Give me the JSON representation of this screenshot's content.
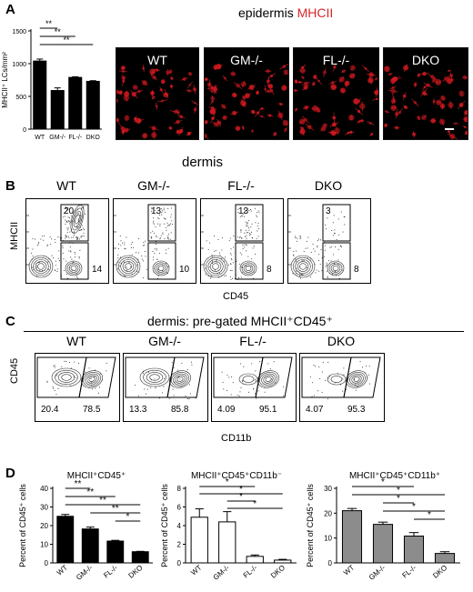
{
  "panelA": {
    "letter": "A",
    "title_main": "epidermis ",
    "title_accent": "MHCII",
    "accent_color": "#d8262a",
    "ylabel": "MHCII⁺ LCs/mm²",
    "yticks": [
      "0",
      "500",
      "1000",
      "1500"
    ],
    "sig": [
      "**",
      "**",
      "**"
    ],
    "micrographs": [
      "WT",
      "GM-/-",
      "FL-/-",
      "DKO"
    ]
  },
  "panelB": {
    "letter": "B",
    "title": "dermis",
    "plots": [
      {
        "name": "WT",
        "gate_high": "20",
        "gate_low": "14"
      },
      {
        "name": "GM-/-",
        "gate_high": "13",
        "gate_low": "10"
      },
      {
        "name": "FL-/-",
        "gate_high": "13",
        "gate_low": "8"
      },
      {
        "name": "DKO",
        "gate_high": "3",
        "gate_low": "8"
      }
    ],
    "ylabel": "MHCII",
    "xlabel": "CD45"
  },
  "panelC": {
    "letter": "C",
    "title": "dermis: pre-gated MHCII⁺CD45⁺",
    "plots": [
      {
        "name": "WT",
        "left": "20.4",
        "right": "78.5"
      },
      {
        "name": "GM-/-",
        "left": "13.3",
        "right": "85.8"
      },
      {
        "name": "FL-/-",
        "left": "4.09",
        "right": "95.1"
      },
      {
        "name": "DKO",
        "left": "4.07",
        "right": "95.3"
      }
    ],
    "ylabel": "CD45",
    "xlabel": "CD11b"
  },
  "panelD": {
    "letter": "D"
  },
  "chart_data": [
    {
      "type": "bar",
      "panel": "A",
      "categories": [
        "WT",
        "GM-/-",
        "FL-/-",
        "DKO"
      ],
      "values": [
        1040,
        590,
        790,
        730
      ],
      "errors": [
        30,
        40,
        10,
        10
      ],
      "ylabel": "MHCII⁺ LCs/mm²",
      "ylim": [
        0,
        1500
      ],
      "yticks": [
        0,
        500,
        1000,
        1500
      ],
      "bar_color": "#000000",
      "significance": [
        {
          "from": 0,
          "to": 1,
          "label": "**"
        },
        {
          "from": 0,
          "to": 2,
          "label": "**"
        },
        {
          "from": 0,
          "to": 3,
          "label": "**"
        }
      ]
    },
    {
      "type": "bar",
      "panel": "D1",
      "title": "MHCII⁺CD45⁺",
      "categories": [
        "WT",
        "GM-/-",
        "FL-/-",
        "DKO"
      ],
      "values": [
        25,
        18.2,
        11.7,
        6
      ],
      "errors": [
        1,
        1,
        0.4,
        0.2
      ],
      "ylabel": "Percent of CD45⁺ cells",
      "ylim": [
        0,
        40
      ],
      "yticks": [
        0,
        10,
        20,
        30,
        40
      ],
      "bar_color": "#000000",
      "significance": [
        {
          "from": 0,
          "to": 1,
          "label": "**"
        },
        {
          "from": 0,
          "to": 2,
          "label": "**"
        },
        {
          "from": 0,
          "to": 3,
          "label": "**"
        },
        {
          "from": 1,
          "to": 3,
          "label": "**"
        },
        {
          "from": 2,
          "to": 3,
          "label": "*"
        }
      ]
    },
    {
      "type": "bar",
      "panel": "D2",
      "title": "MHCII⁺CD45⁺CD11b⁻",
      "categories": [
        "WT",
        "GM-/-",
        "FL-/-",
        "DKO"
      ],
      "values": [
        4.9,
        4.4,
        0.7,
        0.3
      ],
      "errors": [
        0.9,
        1.1,
        0.15,
        0.08
      ],
      "ylabel": "Percent of CD45⁺ cells",
      "ylim": [
        0,
        8
      ],
      "yticks": [
        0,
        2,
        4,
        6,
        8
      ],
      "bar_color": "#ffffff",
      "significance": [
        {
          "from": 0,
          "to": 2,
          "label": "*"
        },
        {
          "from": 0,
          "to": 3,
          "label": "*"
        },
        {
          "from": 1,
          "to": 2,
          "label": "*"
        },
        {
          "from": 1,
          "to": 3,
          "label": "*"
        }
      ]
    },
    {
      "type": "bar",
      "panel": "D3",
      "title": "MHCII⁺CD45⁺CD11b⁺",
      "categories": [
        "WT",
        "GM-/-",
        "FL-/-",
        "DKO"
      ],
      "values": [
        21,
        15.5,
        10.8,
        3.8
      ],
      "errors": [
        0.9,
        0.9,
        1.4,
        0.7
      ],
      "ylabel": "Percent of CD45⁺ cells",
      "ylim": [
        0,
        30
      ],
      "yticks": [
        0,
        10,
        20,
        30
      ],
      "bar_color": "#8c8c8c",
      "significance": [
        {
          "from": 0,
          "to": 2,
          "label": "*"
        },
        {
          "from": 0,
          "to": 3,
          "label": "*"
        },
        {
          "from": 1,
          "to": 2,
          "label": "*"
        },
        {
          "from": 1,
          "to": 3,
          "label": "*"
        },
        {
          "from": 2,
          "to": 3,
          "label": "*"
        }
      ]
    }
  ]
}
